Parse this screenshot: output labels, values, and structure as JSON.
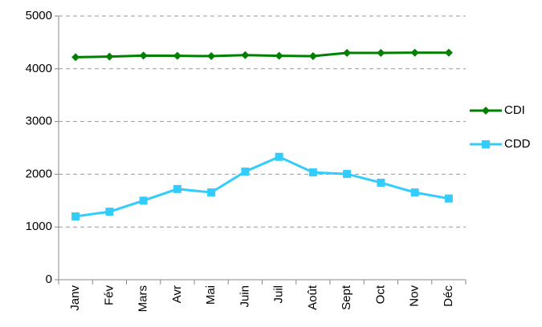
{
  "chart_data": {
    "type": "line",
    "categories": [
      "Janv",
      "Fév",
      "Mars",
      "Avr",
      "Mai",
      "Juin",
      "Juil",
      "Août",
      "Sept",
      "Oct",
      "Nov",
      "Déc"
    ],
    "series": [
      {
        "name": "CDI",
        "color": "#008000",
        "marker": "diamond",
        "values": [
          4220,
          4230,
          4250,
          4245,
          4240,
          4260,
          4245,
          4240,
          4300,
          4300,
          4305,
          4305
        ]
      },
      {
        "name": "CDD",
        "color": "#33ccff",
        "marker": "square",
        "values": [
          1200,
          1290,
          1500,
          1720,
          1655,
          2050,
          2330,
          2035,
          2005,
          1840,
          1655,
          1540
        ]
      }
    ],
    "ylim": [
      0,
      5000
    ],
    "yticks": [
      0,
      1000,
      2000,
      3000,
      4000,
      5000
    ],
    "grid": true,
    "legend": "right"
  }
}
